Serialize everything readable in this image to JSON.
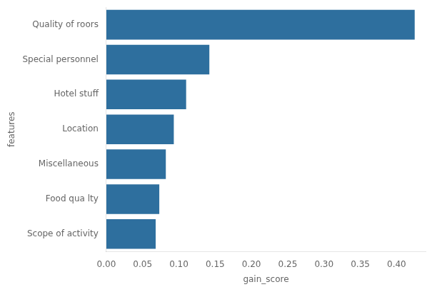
{
  "chart_data": {
    "type": "bar",
    "orientation": "horizontal",
    "categories": [
      "Scope of activity",
      "Food qua lty",
      "Miscellaneous",
      "Location",
      "Hotel stuff",
      "Special personnel",
      "Quality of roors"
    ],
    "values": [
      0.068,
      0.073,
      0.082,
      0.093,
      0.11,
      0.142,
      0.425
    ],
    "color": "#2e6f9e",
    "xlabel": "gain_score",
    "ylabel": "features",
    "xlim": [
      0,
      0.44
    ],
    "xticks": [
      {
        "value": 0.0,
        "label": "0.00"
      },
      {
        "value": 0.05,
        "label": "0.05"
      },
      {
        "value": 0.1,
        "label": "0.10"
      },
      {
        "value": 0.15,
        "label": "0.15"
      },
      {
        "value": 0.2,
        "label": "0.20"
      },
      {
        "value": 0.25,
        "label": "0.25"
      },
      {
        "value": 0.3,
        "label": "0.30"
      },
      {
        "value": 0.35,
        "label": "0.35"
      },
      {
        "value": 0.4,
        "label": "0.40"
      }
    ],
    "grid": false
  }
}
